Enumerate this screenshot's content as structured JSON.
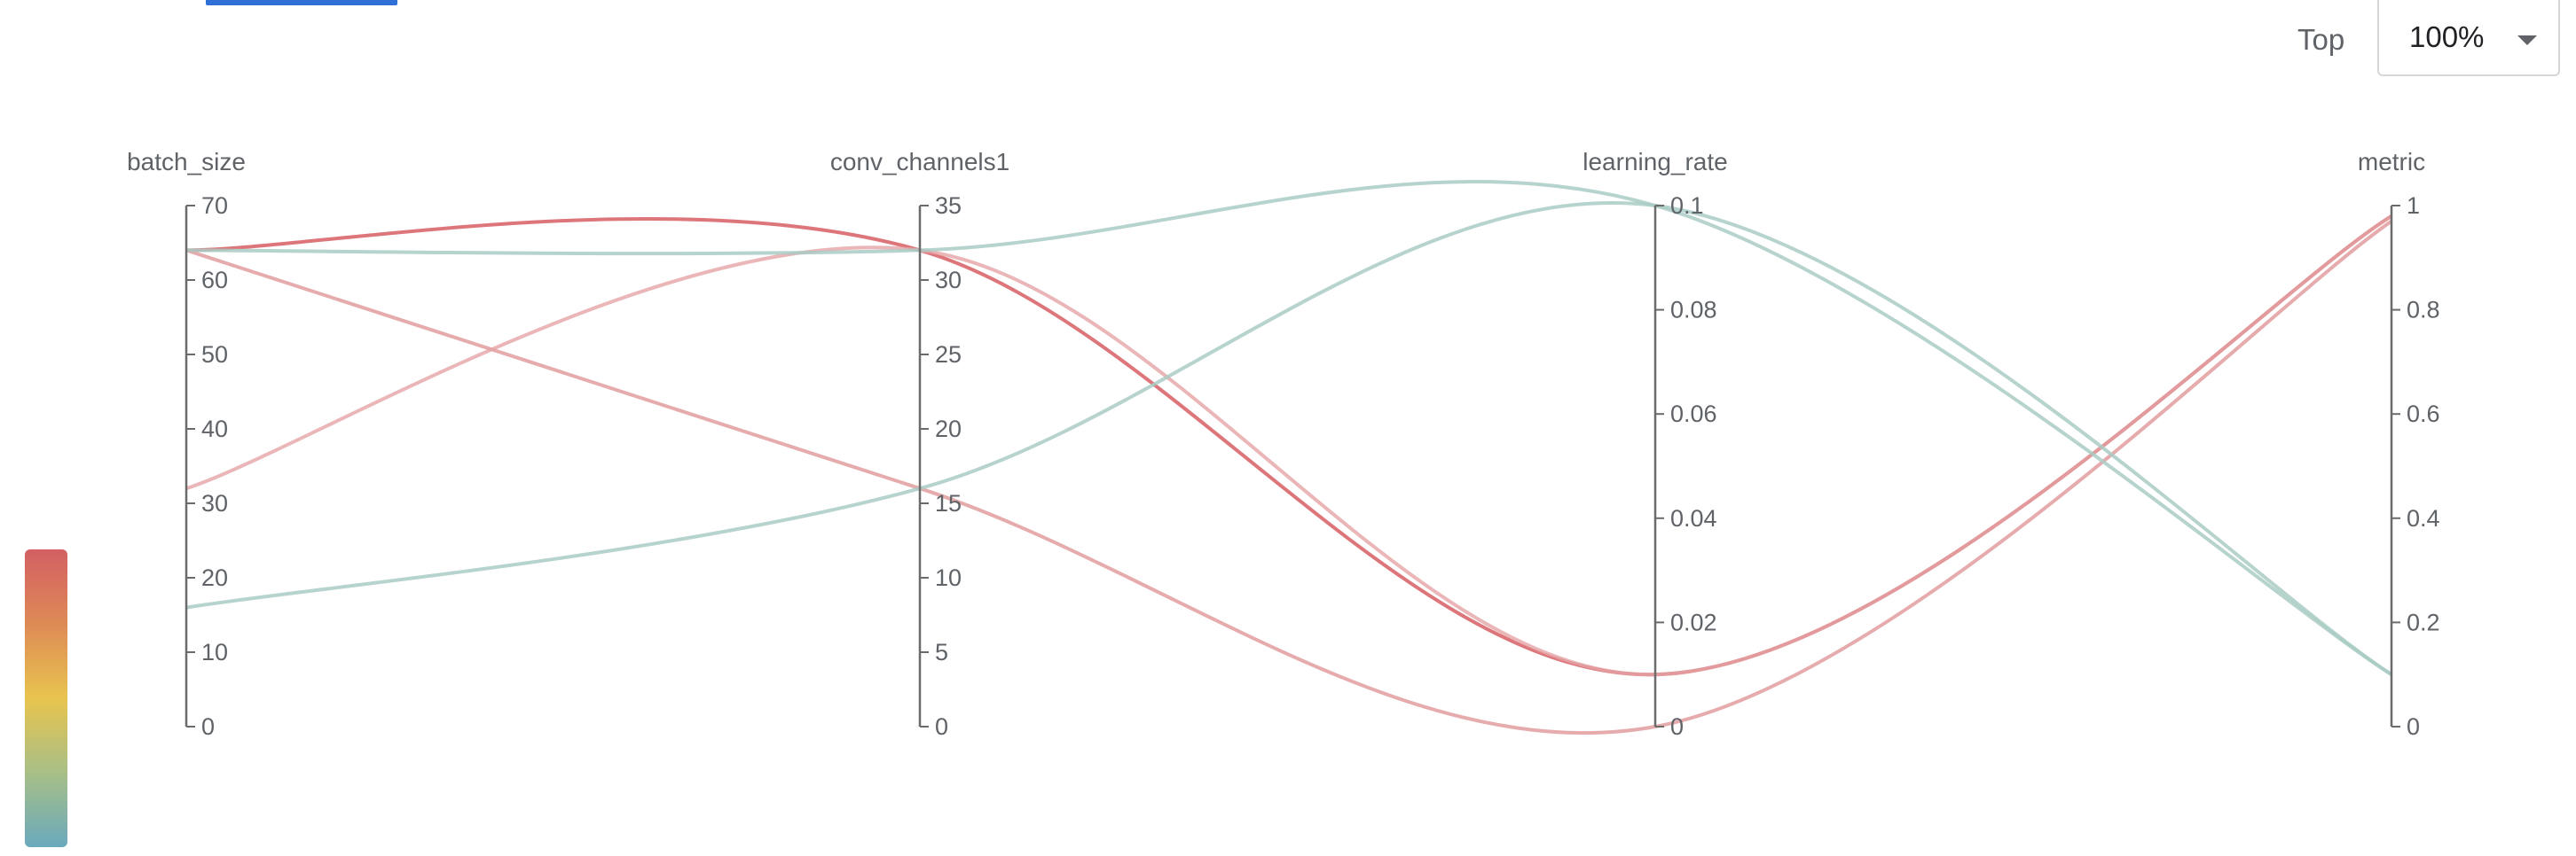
{
  "toolbar": {
    "top_label": "Top",
    "top_value": "100%"
  },
  "colors": {
    "high_metric": "#d9676b",
    "low_metric": "#8fb9ae",
    "axis_line": "#6b6b6b"
  },
  "colorbar": {
    "stops": [
      "#d35f63",
      "#de8a56",
      "#e8c44f",
      "#a8bf86",
      "#6aa9bd"
    ]
  },
  "chart_data": {
    "type": "parallel_coordinates",
    "axes": [
      {
        "name": "batch_size",
        "range": [
          0,
          70
        ],
        "ticks": [
          0,
          10,
          20,
          30,
          40,
          50,
          60,
          70
        ],
        "tick_labels": [
          "0",
          "10",
          "20",
          "30",
          "40",
          "50",
          "60",
          "70"
        ]
      },
      {
        "name": "conv_channels1",
        "range": [
          0,
          35
        ],
        "ticks": [
          0,
          5,
          10,
          15,
          20,
          25,
          30,
          35
        ],
        "tick_labels": [
          "0",
          "5",
          "10",
          "15",
          "20",
          "25",
          "30",
          "35"
        ]
      },
      {
        "name": "learning_rate",
        "range": [
          0,
          0.1
        ],
        "ticks": [
          0,
          0.02,
          0.04,
          0.06,
          0.08,
          0.1
        ],
        "tick_labels": [
          "0",
          "0.02",
          "0.04",
          "0.06",
          "0.08",
          "0.1"
        ]
      },
      {
        "name": "metric",
        "range": [
          0,
          1
        ],
        "ticks": [
          0,
          0.2,
          0.4,
          0.6,
          0.8,
          1
        ],
        "tick_labels": [
          "0",
          "0.2",
          "0.4",
          "0.6",
          "0.8",
          "1"
        ]
      }
    ],
    "lines": [
      {
        "values": [
          64,
          32,
          0.01,
          0.98
        ],
        "color": "#d9676b",
        "opacity": 0.9
      },
      {
        "values": [
          64,
          16,
          0.0,
          0.97
        ],
        "color": "#e29c9f",
        "opacity": 0.85
      },
      {
        "values": [
          32,
          32,
          0.01,
          0.98
        ],
        "color": "#e5a4a6",
        "opacity": 0.8
      },
      {
        "values": [
          64,
          32,
          0.1,
          0.1
        ],
        "color": "#a9cbc4",
        "opacity": 0.85
      },
      {
        "values": [
          16,
          16,
          0.1,
          0.1
        ],
        "color": "#a9cbc4",
        "opacity": 0.85
      }
    ]
  }
}
